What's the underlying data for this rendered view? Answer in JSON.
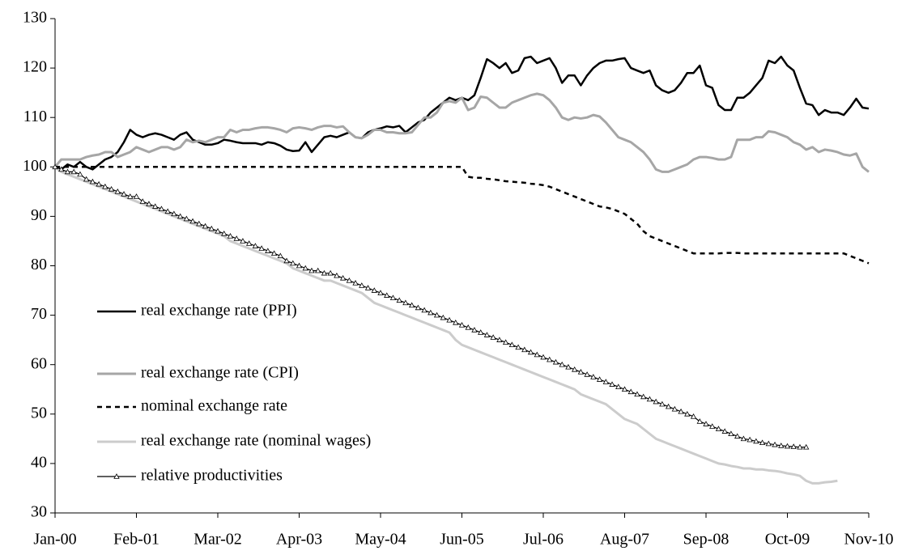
{
  "chart_data": {
    "type": "line",
    "categories": [
      "Jan-00",
      null,
      null,
      null,
      null,
      null,
      null,
      null,
      null,
      null,
      null,
      null,
      null,
      "Feb-01",
      null,
      null,
      null,
      null,
      null,
      null,
      null,
      null,
      null,
      null,
      null,
      null,
      "Mar-02",
      null,
      null,
      null,
      null,
      null,
      null,
      null,
      null,
      null,
      null,
      null,
      null,
      "Apr-03",
      null,
      null,
      null,
      null,
      null,
      null,
      null,
      null,
      null,
      null,
      null,
      null,
      "May-04",
      null,
      null,
      null,
      null,
      null,
      null,
      null,
      null,
      null,
      null,
      null,
      null,
      "Jun-05",
      null,
      null,
      null,
      null,
      null,
      null,
      null,
      null,
      null,
      null,
      null,
      null,
      "Jul-06",
      null,
      null,
      null,
      null,
      null,
      null,
      null,
      null,
      null,
      null,
      null,
      null,
      "Aug-07",
      null,
      null,
      null,
      null,
      null,
      null,
      null,
      null,
      null,
      null,
      null,
      null,
      "Sep-08",
      null,
      null,
      null,
      null,
      null,
      null,
      null,
      null,
      null,
      null,
      null,
      null,
      "Oct-09",
      null,
      null,
      null,
      null,
      null,
      null,
      null,
      null,
      null,
      null,
      null,
      null,
      "Nov-10"
    ],
    "ylim": [
      30,
      130
    ],
    "yticks": [
      30,
      40,
      50,
      60,
      70,
      80,
      90,
      100,
      110,
      120,
      130
    ],
    "series": [
      {
        "name": "real exchange rate (PPI)",
        "color": "#000000",
        "values": [
          100,
          99.5,
          100.5,
          100,
          101,
          100,
          99.5,
          100.5,
          101.5,
          102,
          103,
          105,
          107.5,
          106.5,
          106,
          106.5,
          106.8,
          106.5,
          106,
          105.5,
          106.5,
          107,
          105.5,
          105,
          104.5,
          104.5,
          104.8,
          105.5,
          105.3,
          105,
          104.8,
          104.8,
          104.8,
          104.5,
          105,
          104.8,
          104.3,
          103.5,
          103.2,
          103.3,
          105,
          103,
          104.5,
          106,
          106.3,
          106,
          106.5,
          107,
          106,
          105.8,
          107,
          107.5,
          107.8,
          108.2,
          108,
          108.3,
          107,
          108,
          109,
          109.5,
          111,
          112,
          113,
          114,
          113.5,
          114,
          113.5,
          114.5,
          118,
          121.8,
          121,
          120,
          121,
          119,
          119.5,
          122,
          122.3,
          121,
          121.5,
          122,
          120,
          117,
          118.5,
          118.5,
          116.5,
          118.5,
          120,
          121,
          121.5,
          121.5,
          121.8,
          122,
          120,
          119.5,
          119,
          119.5,
          116.5,
          115.5,
          115,
          115.5,
          117,
          119,
          119,
          120.5,
          116.5,
          116,
          112.5,
          111.5,
          111.5,
          114,
          114,
          115,
          116.5,
          118,
          121.5,
          121,
          122.3,
          120.5,
          119.5,
          116,
          112.8,
          112.5,
          110.5,
          111.5,
          111,
          111,
          110.5,
          112,
          113.8,
          112,
          111.8
        ]
      },
      {
        "name": "real exchange rate (CPI)",
        "color": "#a6a6a6",
        "values": [
          100,
          101.5,
          101.5,
          101.5,
          101.5,
          102,
          102.3,
          102.5,
          103,
          103,
          102,
          102.5,
          103,
          104,
          103.5,
          103,
          103.5,
          104,
          104,
          103.5,
          104,
          105.5,
          105,
          105.3,
          105,
          105.5,
          106,
          106,
          107.5,
          107,
          107.5,
          107.5,
          107.8,
          108,
          108,
          107.8,
          107.5,
          107,
          107.8,
          108,
          107.8,
          107.5,
          108,
          108.3,
          108.3,
          108,
          108.2,
          107,
          106,
          105.8,
          106.5,
          107.5,
          107.5,
          107,
          107,
          106.8,
          106.8,
          107,
          108.5,
          110,
          110,
          111,
          113,
          113.3,
          113,
          114,
          111.5,
          112,
          114.2,
          114,
          113,
          112,
          112,
          113,
          113.5,
          114,
          114.5,
          114.8,
          114.5,
          113.5,
          112,
          110,
          109.5,
          110,
          109.8,
          110,
          110.5,
          110.2,
          109,
          107.5,
          106,
          105.5,
          105,
          104,
          103,
          101.5,
          99.5,
          99,
          99,
          99.5,
          100,
          100.5,
          101.5,
          102,
          102,
          101.8,
          101.5,
          101.5,
          102,
          105.5,
          105.5,
          105.5,
          106,
          106,
          107.2,
          107,
          106.5,
          106,
          105,
          104.5,
          103.5,
          104,
          103,
          103.5,
          103.3,
          103,
          102.5,
          102.3,
          102.7,
          100,
          99
        ]
      },
      {
        "name": "nominal exchange rate",
        "color": "#000000",
        "values": [
          100,
          100,
          100,
          100,
          100,
          100,
          100,
          100,
          100,
          100,
          100,
          100,
          100,
          100,
          100,
          100,
          100,
          100,
          100,
          100,
          100,
          100,
          100,
          100,
          100,
          100,
          100,
          100,
          100,
          100,
          100,
          100,
          100,
          100,
          100,
          100,
          100,
          100,
          100,
          100,
          100,
          100,
          100,
          100,
          100,
          100,
          100,
          100,
          100,
          100,
          100,
          100,
          100,
          100,
          100,
          100,
          100,
          100,
          100,
          100,
          100,
          100,
          100,
          100,
          100,
          100,
          98,
          97.8,
          97.8,
          97.6,
          97.5,
          97.3,
          97.1,
          97,
          96.9,
          96.8,
          96.6,
          96.5,
          96.3,
          96,
          95.5,
          95,
          94.5,
          94,
          93.5,
          93,
          92.5,
          92,
          91.8,
          91.5,
          91,
          90.5,
          89.5,
          88.5,
          87,
          86,
          85.5,
          85,
          84.5,
          84,
          83.5,
          83,
          82.5,
          82.5,
          82.5,
          82.5,
          82.5,
          82.6,
          82.6,
          82.6,
          82.5,
          82.5,
          82.5,
          82.5,
          82.5,
          82.5,
          82.5,
          82.5,
          82.5,
          82.5,
          82.5,
          82.5,
          82.5,
          82.5,
          82.5,
          82.5,
          82.5,
          82,
          81.5,
          81,
          80.5
        ]
      },
      {
        "name": "real exchange rate (nominal wages)",
        "color": "#cccccc",
        "values": [
          100,
          99,
          98.5,
          98,
          97.5,
          97,
          96.5,
          96,
          95.5,
          95,
          94.5,
          94,
          93.5,
          93,
          92.5,
          92,
          91.5,
          91,
          90.5,
          90,
          89.5,
          89,
          88.5,
          88,
          87.5,
          87,
          86.5,
          86,
          85,
          84.5,
          84,
          83.5,
          83,
          82.5,
          82,
          81.5,
          81,
          80.5,
          79.5,
          79,
          78.5,
          78,
          77.5,
          77,
          77,
          76.5,
          76,
          75.5,
          75,
          74.5,
          73.5,
          72.5,
          72,
          71.5,
          71,
          70.5,
          70,
          69.5,
          69,
          68.5,
          68,
          67.5,
          67,
          66.5,
          65,
          64,
          63.5,
          63,
          62.5,
          62,
          61.5,
          61,
          60.5,
          60,
          59.5,
          59,
          58.5,
          58,
          57.5,
          57,
          56.5,
          56,
          55.5,
          55,
          54,
          53.5,
          53,
          52.5,
          52,
          51,
          50,
          49,
          48.5,
          48,
          47,
          46,
          45,
          44.5,
          44,
          43.5,
          43,
          42.5,
          42,
          41.5,
          41,
          40.5,
          40,
          39.8,
          39.5,
          39.3,
          39,
          39,
          38.8,
          38.8,
          38.6,
          38.5,
          38.3,
          38,
          37.8,
          37.5,
          36.5,
          36,
          36,
          36.2,
          36.3,
          36.5,
          null,
          null,
          null,
          null,
          null
        ]
      },
      {
        "name": "relative productivities",
        "color": "#000000",
        "values": [
          100,
          99.5,
          99,
          99,
          98.5,
          97.5,
          97,
          96.5,
          96,
          95.5,
          95,
          94.5,
          94,
          94,
          93,
          92.5,
          92,
          91.5,
          91,
          90.5,
          90,
          89.5,
          89,
          88.5,
          88,
          87.5,
          87,
          86.5,
          86,
          85.5,
          85,
          84.5,
          84,
          83.5,
          83,
          82.5,
          82,
          81,
          80.5,
          80,
          79.5,
          79,
          79,
          78.5,
          78.5,
          78,
          77.5,
          77,
          76.5,
          76,
          75.5,
          75,
          74.5,
          74,
          73.5,
          73,
          72.5,
          72,
          71.5,
          71,
          70.5,
          70,
          69.5,
          69,
          68.5,
          68,
          67.5,
          67,
          66.5,
          66,
          65.5,
          65,
          64.5,
          64,
          63.5,
          63,
          62.5,
          62,
          61.5,
          61,
          60.5,
          60,
          59.5,
          59,
          58.5,
          58,
          57.5,
          57,
          56.5,
          56,
          55.5,
          55,
          54.5,
          54,
          53.5,
          53,
          52.5,
          52,
          51.5,
          51,
          50.5,
          50,
          49.5,
          48.5,
          48,
          47.5,
          47,
          46.5,
          46,
          45.5,
          45,
          44.8,
          44.5,
          44.2,
          44,
          43.8,
          43.6,
          43.5,
          43.4,
          43.3,
          43.3,
          null,
          null,
          null,
          null,
          null,
          null,
          null,
          null,
          null,
          null
        ]
      }
    ]
  }
}
